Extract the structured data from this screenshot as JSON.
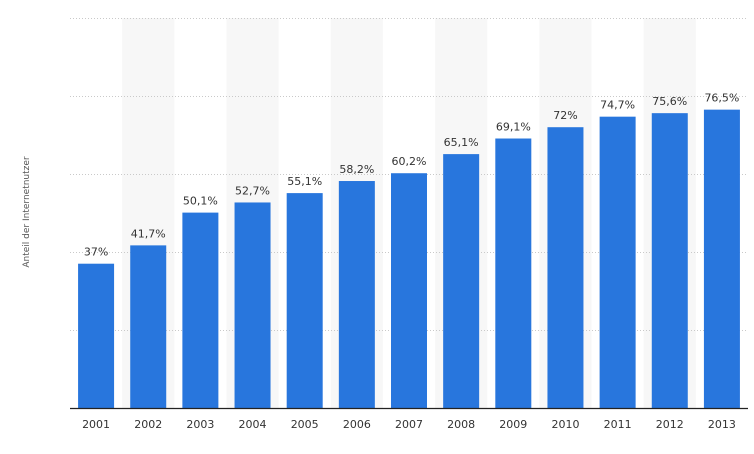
{
  "chart_data": {
    "type": "bar",
    "title": "",
    "xlabel": "",
    "ylabel": "Anteil der Internetnutzer",
    "categories": [
      "2001",
      "2002",
      "2003",
      "2004",
      "2005",
      "2006",
      "2007",
      "2008",
      "2009",
      "2010",
      "2011",
      "2012",
      "2013"
    ],
    "values": [
      37,
      41.7,
      50.1,
      52.7,
      55.1,
      58.2,
      60.2,
      65.1,
      69.1,
      72,
      74.7,
      75.6,
      76.5
    ],
    "data_labels": [
      "37%",
      "41,7%",
      "50,1%",
      "52,7%",
      "55,1%",
      "58,2%",
      "60,2%",
      "65,1%",
      "69,1%",
      "72%",
      "74,7%",
      "75,6%",
      "76,5%"
    ],
    "ylim": [
      0,
      100
    ],
    "y_tick_labels_visible": false,
    "grid": true,
    "legend": false,
    "colors": {
      "bar": "#2876dd",
      "grid": "#c9c9c9",
      "axis": "#222222",
      "band": "#f7f7f7"
    }
  }
}
